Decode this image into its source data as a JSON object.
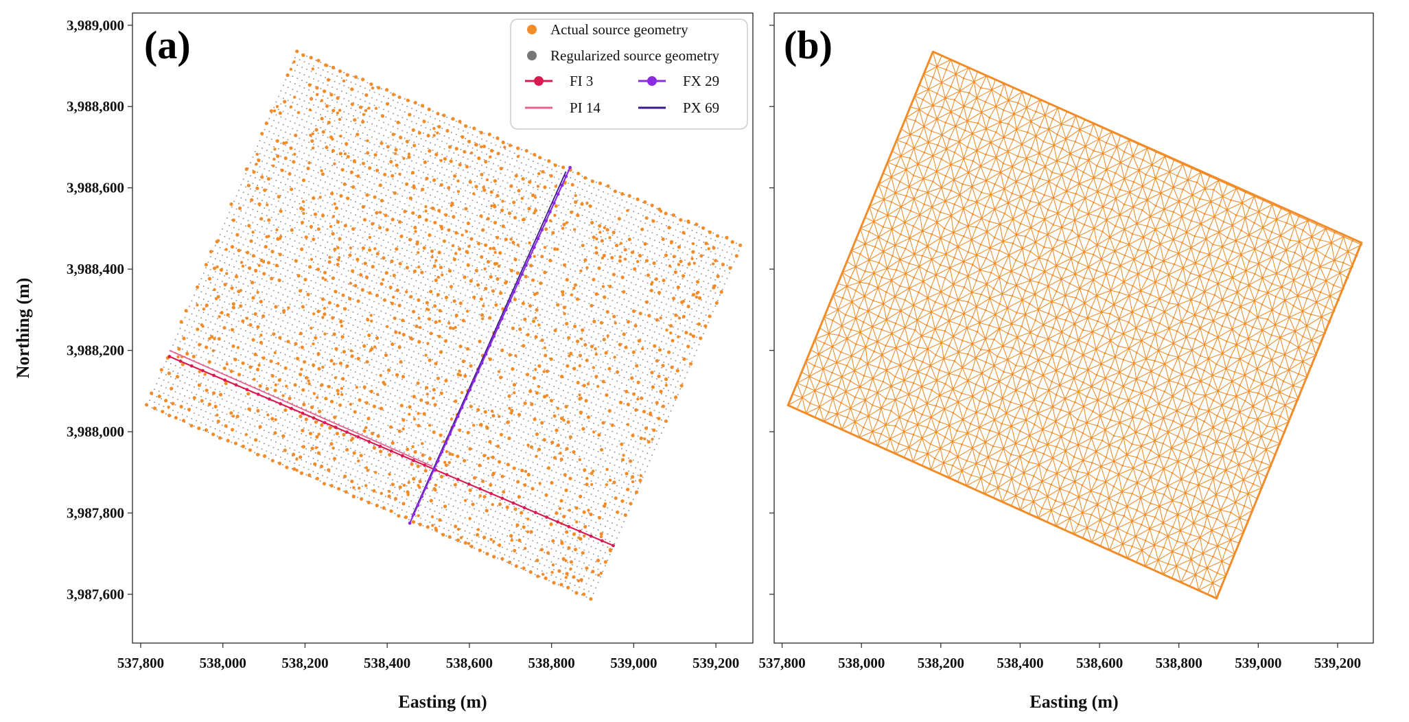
{
  "chart_data": [
    {
      "type": "scatter",
      "panel_label": "(a)",
      "xlabel": "Easting (m)",
      "ylabel": "Northing (m)",
      "xlim": [
        537780,
        539290
      ],
      "ylim": [
        3987480,
        3989030
      ],
      "xticks": [
        537800,
        538000,
        538200,
        538400,
        538600,
        538800,
        539000,
        539200
      ],
      "xtick_labels": [
        "537,800",
        "538,000",
        "538,200",
        "538,400",
        "538,600",
        "538,800",
        "539,000",
        "539,200"
      ],
      "yticks": [
        3987600,
        3987800,
        3988000,
        3988200,
        3988400,
        3988600,
        3988800,
        3989000
      ],
      "ytick_labels": [
        "3,987,600",
        "3,987,800",
        "3,988,000",
        "3,988,200",
        "3,988,400",
        "3,988,600",
        "3,988,800",
        "3,989,000"
      ],
      "survey_corners": {
        "north": [
          538180,
          3988935
        ],
        "east": [
          539260,
          3988465
        ],
        "south": [
          538895,
          3987590
        ],
        "west": [
          537815,
          3988065
        ]
      },
      "legend": [
        {
          "label": "Actual source geometry",
          "marker": "dot",
          "color": "#f28c28"
        },
        {
          "label": "Regularized source geometry",
          "marker": "dot",
          "color": "#777777"
        },
        {
          "label": "FI  3",
          "marker": "line-dot",
          "color": "#d81b50"
        },
        {
          "label": "FX 29",
          "marker": "line-dot",
          "color": "#8a2be2"
        },
        {
          "label": "PI 14",
          "marker": "line",
          "color": "#e8608f"
        },
        {
          "label": "PX 69",
          "marker": "line",
          "color": "#3a1a8a"
        }
      ],
      "series": [
        {
          "name": "FI  3",
          "color": "#d81b50",
          "x": [
            537870,
            538950
          ],
          "y": [
            3988185,
            3987720
          ]
        },
        {
          "name": "PI 14",
          "color": "#e8608f",
          "x": [
            537870,
            538510
          ],
          "y": [
            3988200,
            3987915
          ]
        },
        {
          "name": "FX 29",
          "color": "#8a2be2",
          "x": [
            538455,
            538845
          ],
          "y": [
            3987775,
            3988650
          ]
        },
        {
          "name": "PX 69",
          "color": "#3a1a8a",
          "x": [
            538460,
            538835
          ],
          "y": [
            3987790,
            3988640
          ]
        }
      ]
    },
    {
      "type": "triangulation",
      "panel_label": "(b)",
      "xlabel": "Easting (m)",
      "xlim": [
        537780,
        539290
      ],
      "ylim": [
        3987480,
        3989030
      ],
      "xticks": [
        537800,
        538000,
        538200,
        538400,
        538600,
        538800,
        539000,
        539200
      ],
      "xtick_labels": [
        "537,800",
        "538,000",
        "538,200",
        "538,400",
        "538,600",
        "538,800",
        "539,000",
        "539,200"
      ],
      "mesh_color": "#f28c28"
    }
  ]
}
